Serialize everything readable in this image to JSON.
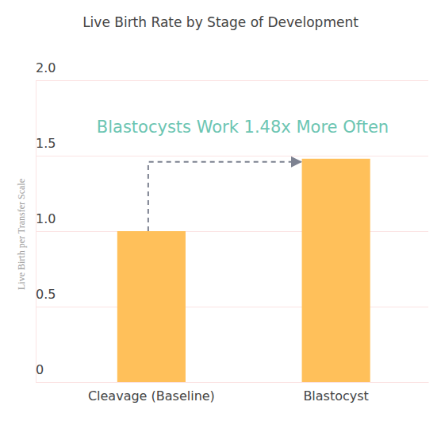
{
  "chart_data": {
    "type": "bar",
    "title": "Live Birth Rate by Stage of Development",
    "y_label": "Live Birth per Transfer Scale",
    "annotation": "Blastocysts Work 1.48x More Often",
    "categories": [
      "Cleavage (Baseline)",
      "Blastocyst"
    ],
    "values": [
      1.0,
      1.48
    ],
    "color": "#ffc05a",
    "ylim": [
      0,
      2
    ],
    "yticks": [
      0,
      0.5,
      {
        "value": 1,
        "label": "1.0"
      },
      1.5,
      {
        "value": 2,
        "label": "2.0"
      }
    ],
    "grid": true
  }
}
